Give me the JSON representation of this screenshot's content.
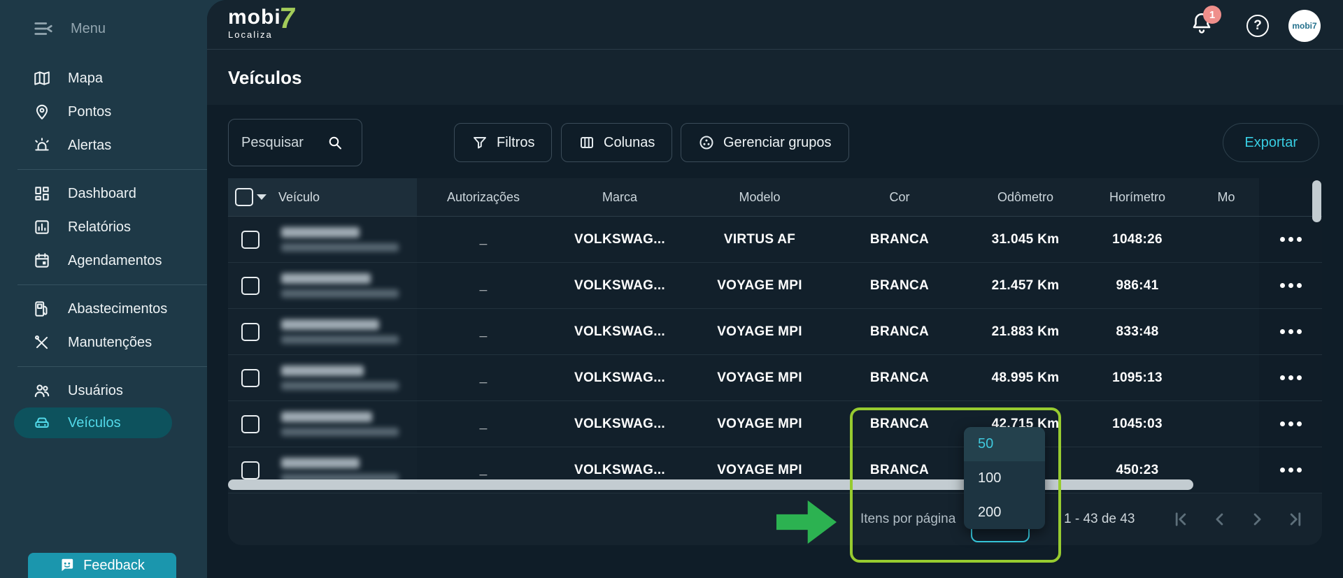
{
  "sidebar": {
    "menu_label": "Menu",
    "groups": [
      {
        "items": [
          {
            "id": "mapa",
            "label": "Mapa",
            "icon": "map-icon"
          },
          {
            "id": "pontos",
            "label": "Pontos",
            "icon": "pin-icon"
          },
          {
            "id": "alertas",
            "label": "Alertas",
            "icon": "alert-icon"
          }
        ]
      },
      {
        "items": [
          {
            "id": "dashboard",
            "label": "Dashboard",
            "icon": "dashboard-icon"
          },
          {
            "id": "relatorios",
            "label": "Relatórios",
            "icon": "report-icon"
          },
          {
            "id": "agendamentos",
            "label": "Agendamentos",
            "icon": "calendar-icon"
          }
        ]
      },
      {
        "items": [
          {
            "id": "abastecimentos",
            "label": "Abastecimentos",
            "icon": "fuel-icon"
          },
          {
            "id": "manutencoes",
            "label": "Manutenções",
            "icon": "tools-icon"
          }
        ]
      },
      {
        "items": [
          {
            "id": "usuarios",
            "label": "Usuários",
            "icon": "users-icon"
          },
          {
            "id": "veiculos",
            "label": "Veículos",
            "icon": "car-icon",
            "selected": true
          }
        ]
      }
    ],
    "feedback_label": "Feedback"
  },
  "topbar": {
    "logo_main": "mobi",
    "logo_seven": "7",
    "logo_sub": "Localiza",
    "notification_badge": "1",
    "avatar_label": "mobi7"
  },
  "page": {
    "title": "Veículos"
  },
  "toolbar": {
    "search_placeholder": "Pesquisar",
    "filters": "Filtros",
    "columns": "Colunas",
    "manage_groups": "Gerenciar grupos",
    "export": "Exportar"
  },
  "table": {
    "headers": {
      "vehicle": "Veículo",
      "authorizations": "Autorizações",
      "brand": "Marca",
      "model": "Modelo",
      "color": "Cor",
      "odometer": "Odômetro",
      "hourmeter": "Horímetro",
      "truncated": "Mo"
    },
    "rows": [
      {
        "authorizations": "_",
        "brand": "VOLKSWAG...",
        "model": "VIRTUS AF",
        "color": "BRANCA",
        "odometer": "31.045 Km",
        "hourmeter": "1048:26"
      },
      {
        "authorizations": "_",
        "brand": "VOLKSWAG...",
        "model": "VOYAGE MPI",
        "color": "BRANCA",
        "odometer": "21.457 Km",
        "hourmeter": "986:41"
      },
      {
        "authorizations": "_",
        "brand": "VOLKSWAG...",
        "model": "VOYAGE MPI",
        "color": "BRANCA",
        "odometer": "21.883 Km",
        "hourmeter": "833:48"
      },
      {
        "authorizations": "_",
        "brand": "VOLKSWAG...",
        "model": "VOYAGE MPI",
        "color": "BRANCA",
        "odometer": "48.995 Km",
        "hourmeter": "1095:13"
      },
      {
        "authorizations": "_",
        "brand": "VOLKSWAG...",
        "model": "VOYAGE MPI",
        "color": "BRANCA",
        "odometer": "42.715 Km",
        "hourmeter": "1045:03"
      },
      {
        "authorizations": "_",
        "brand": "VOLKSWAG...",
        "model": "VOYAGE MPI",
        "color": "BRANCA",
        "odometer": "",
        "hourmeter": "450:23"
      }
    ]
  },
  "pagination": {
    "items_per_page_label": "Itens por página",
    "options": [
      "50",
      "100",
      "200"
    ],
    "selected_option": "50",
    "range": "1 - 43 de 43"
  },
  "colors": {
    "accent_cyan": "#38cde2",
    "highlight_green": "#97cb30",
    "arrow_green": "#2cb251",
    "badge_pink": "#ef8f8b",
    "feedback_teal": "#1b96ad",
    "logo_green": "#a3cc5a",
    "sidebar_bg": "#1e3947",
    "content_bg": "#0f1d28",
    "selected_item_bg": "#0d525d"
  }
}
